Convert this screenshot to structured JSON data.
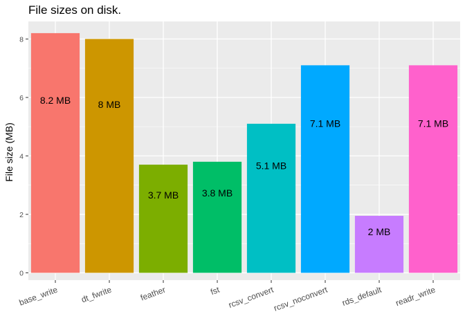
{
  "chart_data": {
    "type": "bar",
    "title": "File sizes on disk.",
    "xlabel": "",
    "ylabel": "File size (MB)",
    "ylim": [
      -0.25,
      8.6
    ],
    "yticks": [
      0,
      2,
      4,
      6,
      8
    ],
    "grid": true,
    "legend": "none",
    "categories": [
      "base_write",
      "dt_fwrite",
      "feather",
      "fst",
      "rcsv_convert",
      "rcsv_noconvert",
      "rds_default",
      "readr_write"
    ],
    "values": [
      8.2,
      8.0,
      3.7,
      3.8,
      5.1,
      7.1,
      1.95,
      7.1
    ],
    "labels": [
      "8.2 MB",
      "8 MB",
      "3.7 MB",
      "3.8 MB",
      "5.1 MB",
      "7.1 MB",
      "2 MB",
      "7.1 MB"
    ],
    "colors": [
      "#F8766D",
      "#CD9600",
      "#7CAE00",
      "#00BE67",
      "#00BFC4",
      "#00A9FF",
      "#C77CFF",
      "#FF61CC"
    ],
    "panel_background": "#EBEBEB",
    "grid_color": "#FFFFFF"
  }
}
